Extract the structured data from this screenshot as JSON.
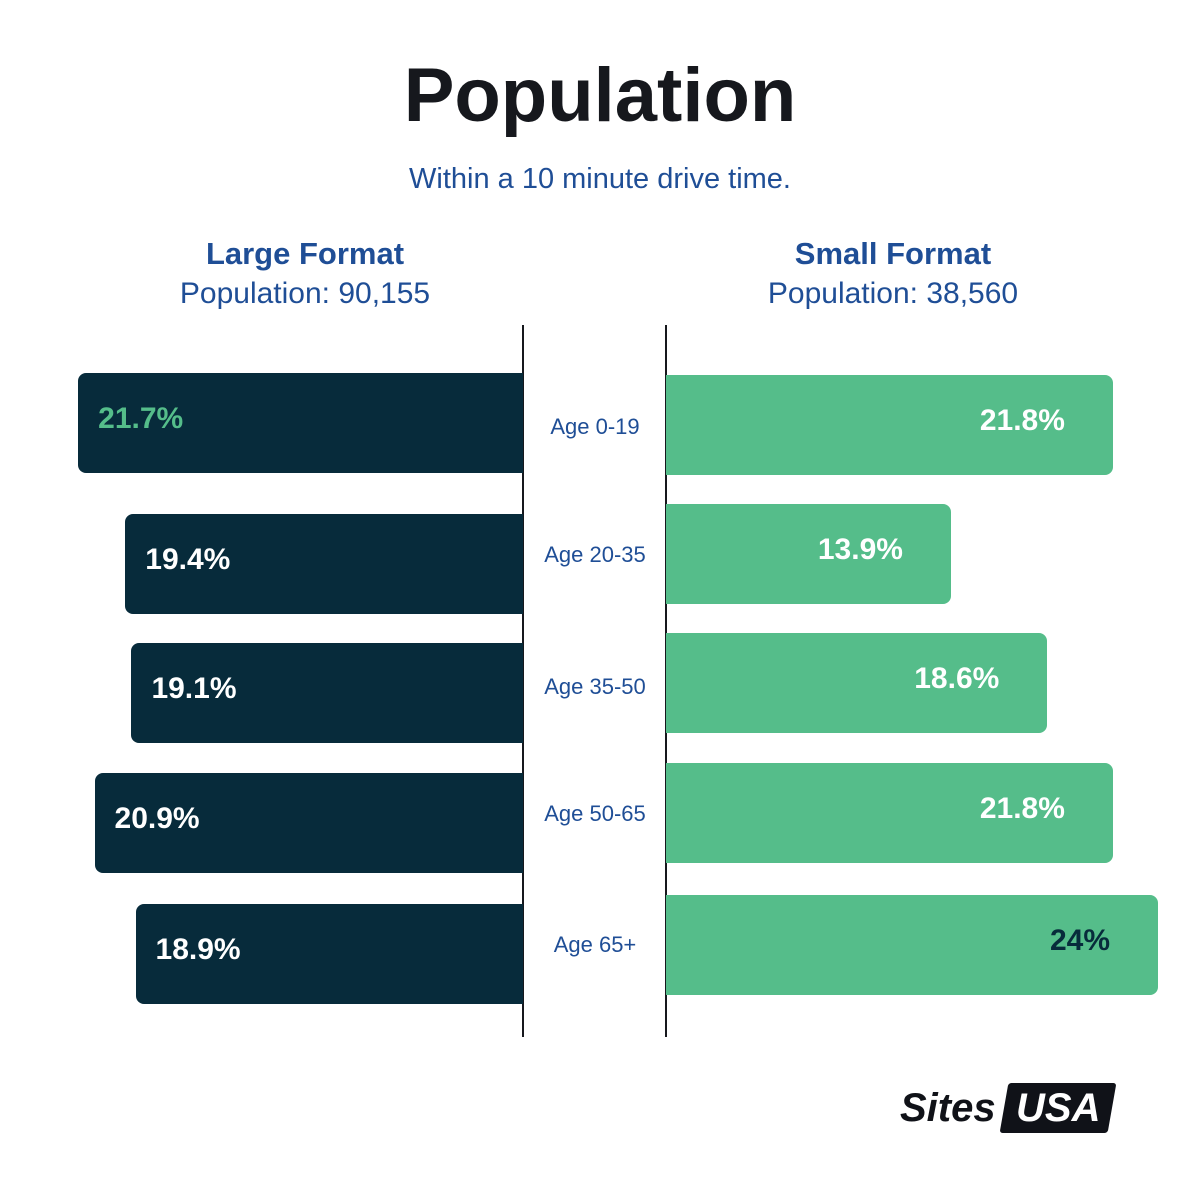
{
  "title": "Population",
  "subtitle": "Within a 10 minute drive time.",
  "left_header": {
    "name": "Large Format",
    "population": "Population: 90,155"
  },
  "right_header": {
    "name": "Small Format",
    "population": "Population: 38,560"
  },
  "colors": {
    "left_bar": "#072b3b",
    "right_bar": "#55bd8a",
    "accent_text": "#1f4e96",
    "label_light": "#ffffff",
    "label_green": "#55bd8a",
    "label_dark": "#072b3b"
  },
  "chart_data": {
    "type": "bar",
    "orientation": "horizontal-butterfly",
    "categories": [
      "Age 0-19",
      "Age 20-35",
      "Age 35-50",
      "Age 50-65",
      "Age 65+"
    ],
    "unit": "%",
    "series": [
      {
        "name": "Large Format",
        "values": [
          21.7,
          19.4,
          19.1,
          20.9,
          18.9
        ],
        "labels": [
          "21.7%",
          "19.4%",
          "19.1%",
          "20.9%",
          "18.9%"
        ]
      },
      {
        "name": "Small Format",
        "values": [
          21.8,
          13.9,
          18.6,
          21.8,
          24
        ],
        "labels": [
          "21.8%",
          "13.9%",
          "18.6%",
          "21.8%",
          "24%"
        ]
      }
    ],
    "xlim": [
      0,
      24
    ]
  },
  "logo": {
    "word1": "Sites",
    "word2": "USA"
  }
}
